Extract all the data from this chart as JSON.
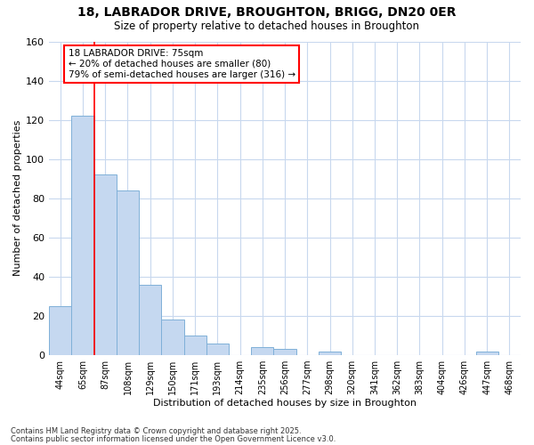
{
  "title_line1": "18, LABRADOR DRIVE, BROUGHTON, BRIGG, DN20 0ER",
  "title_line2": "Size of property relative to detached houses in Broughton",
  "xlabel": "Distribution of detached houses by size in Broughton",
  "ylabel": "Number of detached properties",
  "footer_line1": "Contains HM Land Registry data © Crown copyright and database right 2025.",
  "footer_line2": "Contains public sector information licensed under the Open Government Licence v3.0.",
  "categories": [
    "44sqm",
    "65sqm",
    "87sqm",
    "108sqm",
    "129sqm",
    "150sqm",
    "171sqm",
    "193sqm",
    "214sqm",
    "235sqm",
    "256sqm",
    "277sqm",
    "298sqm",
    "320sqm",
    "341sqm",
    "362sqm",
    "383sqm",
    "404sqm",
    "426sqm",
    "447sqm",
    "468sqm"
  ],
  "values": [
    25,
    122,
    92,
    84,
    36,
    18,
    10,
    6,
    0,
    4,
    3,
    0,
    2,
    0,
    0,
    0,
    0,
    0,
    0,
    2,
    0
  ],
  "bar_color": "#c5d8f0",
  "bar_edge_color": "#7fb0d8",
  "grid_color": "#c8d8ee",
  "background_color": "#ffffff",
  "annotation_text": "18 LABRADOR DRIVE: 75sqm\n← 20% of detached houses are smaller (80)\n79% of semi-detached houses are larger (316) →",
  "annotation_box_color": "white",
  "annotation_box_edge_color": "red",
  "red_line_x": 1.5,
  "ylim": [
    0,
    160
  ],
  "yticks": [
    0,
    20,
    40,
    60,
    80,
    100,
    120,
    140,
    160
  ]
}
